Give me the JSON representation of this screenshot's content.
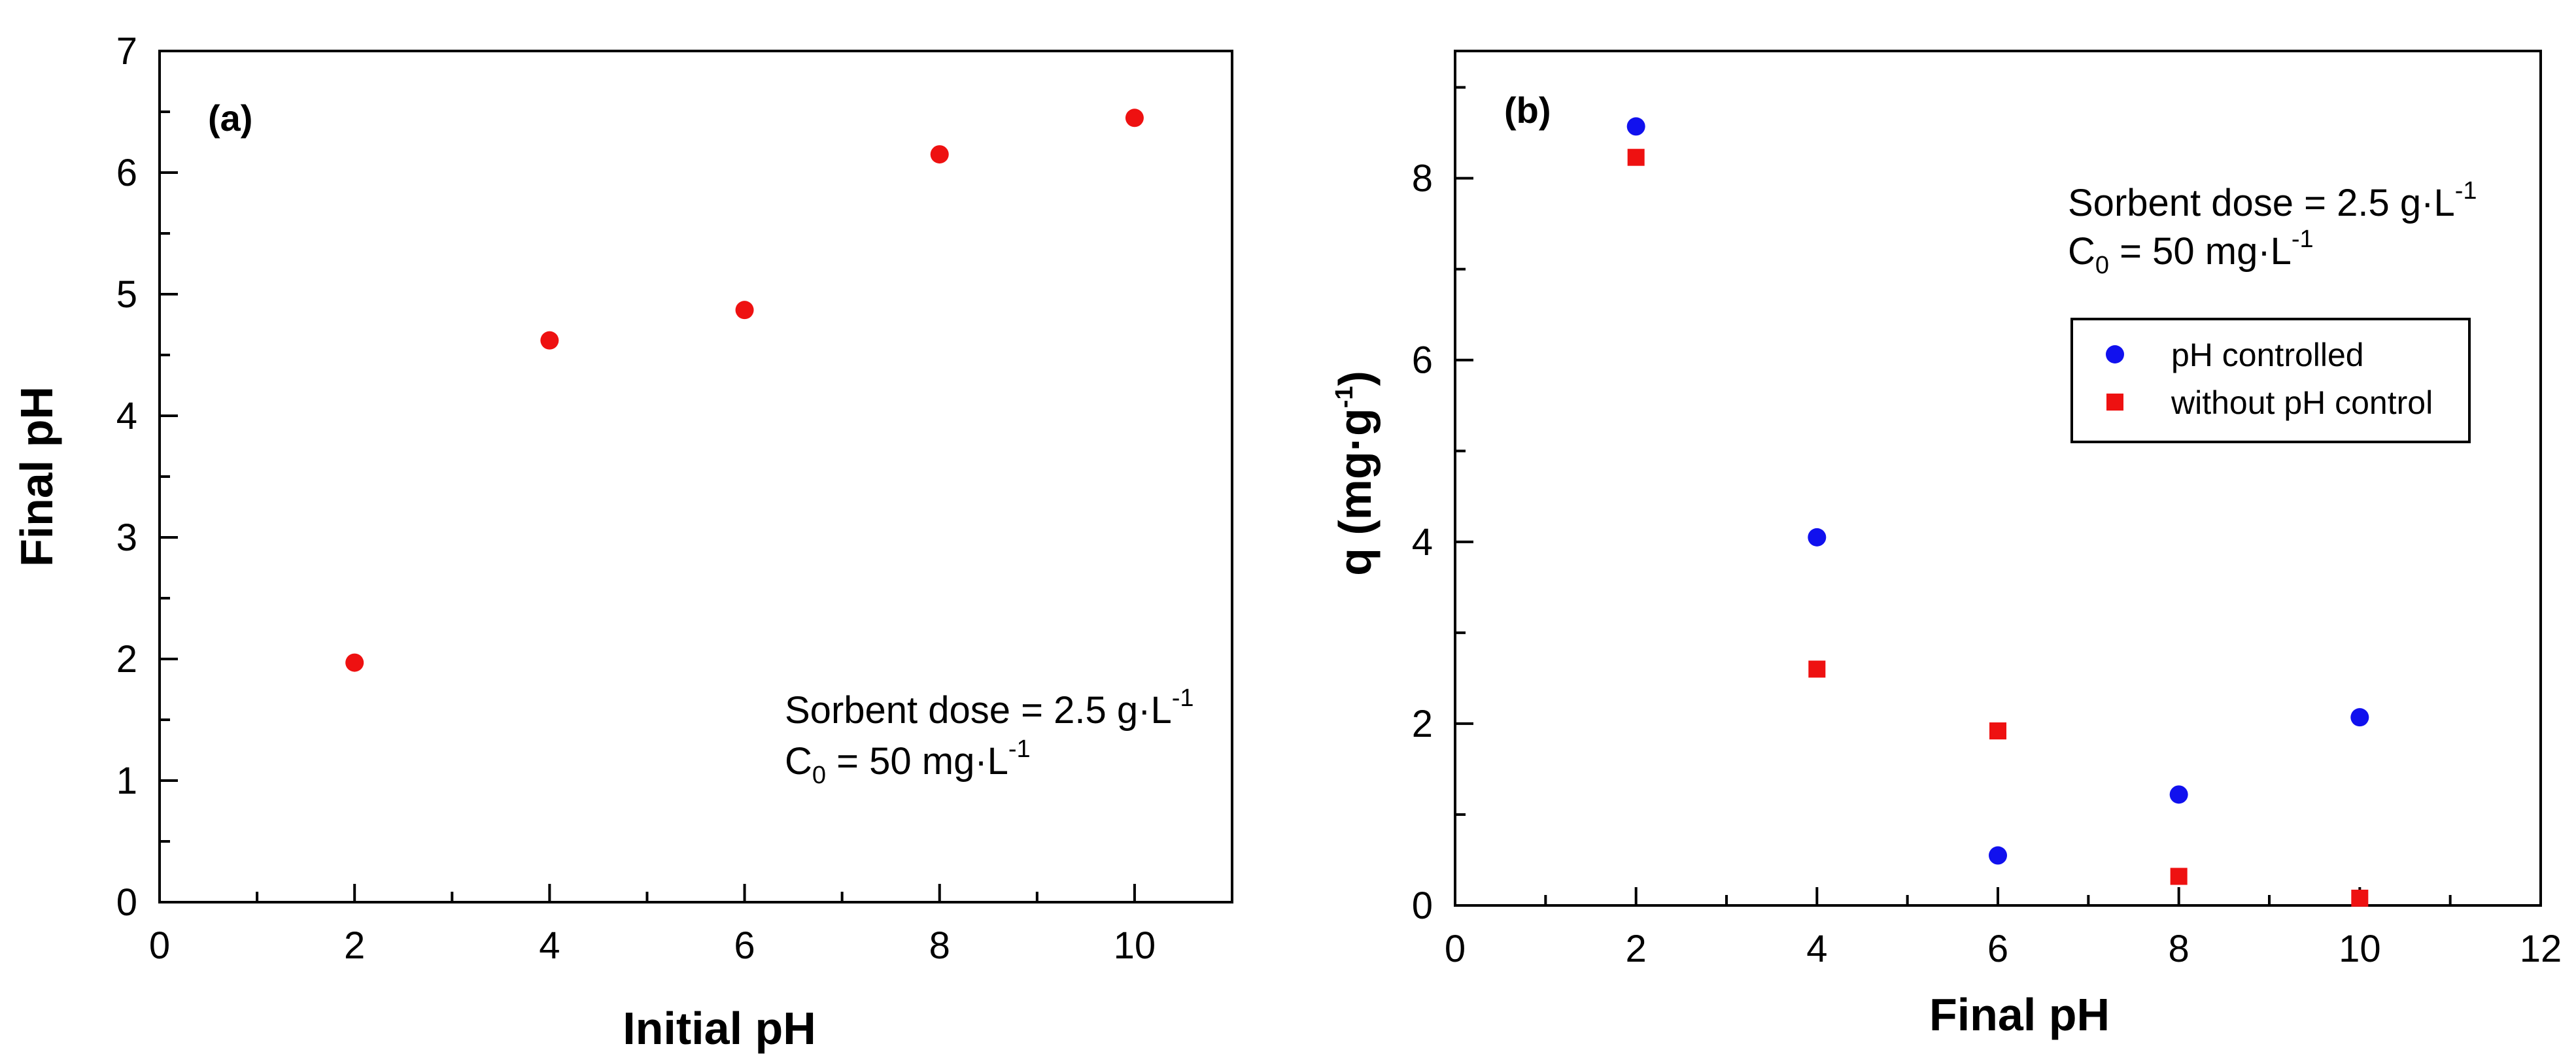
{
  "chart_data": [
    {
      "type": "scatter",
      "panel_label": "(a)",
      "xlabel": "Initial pH",
      "ylabel": "Final pH",
      "xlim": [
        0,
        11
      ],
      "ylim": [
        0,
        7
      ],
      "x_ticks": [
        "0",
        "2",
        "4",
        "6",
        "8",
        "10"
      ],
      "y_ticks": [
        "0",
        "1",
        "2",
        "3",
        "4",
        "5",
        "6",
        "7"
      ],
      "annotation": {
        "dose_label": "Sorbent dose = 2.5 g·L",
        "dose_exp": "-1",
        "c0_label": "C",
        "c0_sub": "0",
        "c0_value": " = 50 mg·L",
        "c0_exp": "-1"
      },
      "series": [
        {
          "name": "",
          "color": "#ee1111",
          "marker": "circle",
          "x": [
            2,
            4,
            6,
            8,
            10
          ],
          "y": [
            1.97,
            4.62,
            4.87,
            6.15,
            6.45
          ]
        }
      ]
    },
    {
      "type": "scatter",
      "panel_label": "(b)",
      "xlabel": "Final pH",
      "ylabel_parts": {
        "prefix": "q (mg·g",
        "exp": "-1",
        "suffix": ")"
      },
      "xlim": [
        0,
        12
      ],
      "ylim": [
        0,
        9.4
      ],
      "x_ticks": [
        "0",
        "2",
        "4",
        "6",
        "8",
        "10",
        "12"
      ],
      "y_ticks": [
        "0",
        "2",
        "4",
        "6",
        "8"
      ],
      "annotation": {
        "dose_label": "Sorbent dose = 2.5 g·L",
        "dose_exp": "-1",
        "c0_label": "C",
        "c0_sub": "0",
        "c0_value": " = 50 mg·L",
        "c0_exp": "-1"
      },
      "legend_position": "upper-right",
      "series": [
        {
          "name": "pH controlled",
          "color": "#1111ee",
          "marker": "circle",
          "x": [
            2,
            4,
            6,
            8,
            10
          ],
          "y": [
            8.57,
            4.05,
            0.55,
            1.22,
            2.07
          ]
        },
        {
          "name": "without pH control",
          "color": "#ee1111",
          "marker": "square",
          "x": [
            2,
            4,
            6,
            8,
            10
          ],
          "y": [
            8.23,
            2.6,
            1.92,
            0.32,
            0.08
          ]
        }
      ]
    }
  ]
}
